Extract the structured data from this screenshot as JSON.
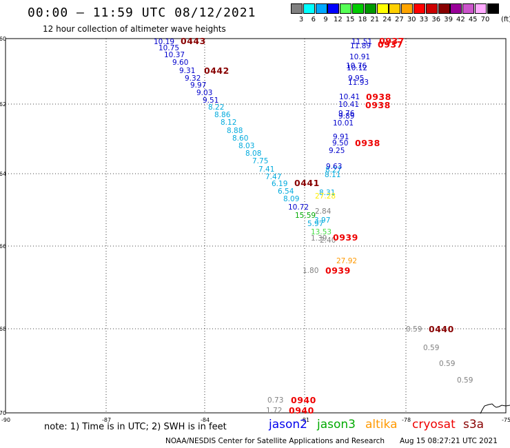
{
  "header": {
    "title": "00:00 – 11:59 UTC 08/12/2021",
    "subtitle": "12 hour collection of altimeter wave heights"
  },
  "legend": {
    "unit": "(ft)",
    "items": [
      {
        "label": "3",
        "color": "#808080"
      },
      {
        "label": "6",
        "color": "#00ffff"
      },
      {
        "label": "9",
        "color": "#00a8ff"
      },
      {
        "label": "12",
        "color": "#0000ff"
      },
      {
        "label": "15",
        "color": "#55ff55"
      },
      {
        "label": "18",
        "color": "#00cc00"
      },
      {
        "label": "21",
        "color": "#009900"
      },
      {
        "label": "24",
        "color": "#ffff00"
      },
      {
        "label": "27",
        "color": "#ffd000"
      },
      {
        "label": "30",
        "color": "#ffa500"
      },
      {
        "label": "33",
        "color": "#ff0000"
      },
      {
        "label": "36",
        "color": "#cc0000"
      },
      {
        "label": "39",
        "color": "#880000"
      },
      {
        "label": "42",
        "color": "#990099"
      },
      {
        "label": "45",
        "color": "#cc55cc"
      },
      {
        "label": "70",
        "color": "#ffaaff"
      },
      {
        "label": "",
        "color": "#000000"
      }
    ]
  },
  "map": {
    "lat_ticks": [
      "-60",
      "-62",
      "-64",
      "-66",
      "-68",
      "-70"
    ],
    "lon_ticks": [
      "-90",
      "-87",
      "-84",
      "-81",
      "-78",
      "-75"
    ],
    "observations": [
      {
        "value": "10.19",
        "color": "#0000cc"
      },
      {
        "value": "10.75",
        "color": "#0000cc"
      },
      {
        "value": "10.37",
        "color": "#0000cc"
      },
      {
        "value": "9.60",
        "color": "#0000cc"
      },
      {
        "value": "9.31",
        "color": "#0000cc"
      },
      {
        "value": "9.32",
        "color": "#0000cc"
      },
      {
        "value": "9.97",
        "color": "#0000cc"
      },
      {
        "value": "9.03",
        "color": "#0000cc"
      },
      {
        "value": "9.51",
        "color": "#0000cc"
      },
      {
        "value": "8.22",
        "color": "#00aadd"
      },
      {
        "value": "8.86",
        "color": "#00aadd"
      },
      {
        "value": "8.12",
        "color": "#00aadd"
      },
      {
        "value": "8.88",
        "color": "#00aadd"
      },
      {
        "value": "8.60",
        "color": "#00aadd"
      },
      {
        "value": "8.03",
        "color": "#00aadd"
      },
      {
        "value": "8.08",
        "color": "#00aadd"
      },
      {
        "value": "7.75",
        "color": "#00aadd"
      },
      {
        "value": "7.41",
        "color": "#00aadd"
      },
      {
        "value": "7.47",
        "color": "#00aadd"
      },
      {
        "value": "6.19",
        "color": "#00aadd"
      },
      {
        "value": "6.54",
        "color": "#00aadd"
      },
      {
        "value": "8.09",
        "color": "#00aadd"
      },
      {
        "value": "10.72",
        "color": "#0000cc"
      },
      {
        "value": "15.59",
        "color": "#00aa00"
      },
      {
        "value": "5.97",
        "color": "#00aadd"
      },
      {
        "value": "3.97",
        "color": "#00aadd"
      },
      {
        "value": "13.53",
        "color": "#44dd44"
      },
      {
        "value": "1.39",
        "color": "#808080"
      },
      {
        "value": "2.40",
        "color": "#808080"
      },
      {
        "value": "2.84",
        "color": "#808080"
      },
      {
        "value": "8.31",
        "color": "#00aadd"
      },
      {
        "value": "27.28",
        "color": "#ffee00"
      },
      {
        "value": "8.11",
        "color": "#00aadd"
      },
      {
        "value": "8.27",
        "color": "#00aadd"
      },
      {
        "value": "9.63",
        "color": "#0000cc"
      },
      {
        "value": "9.25",
        "color": "#0000cc"
      },
      {
        "value": "9.50",
        "color": "#0000cc"
      },
      {
        "value": "9.91",
        "color": "#0000cc"
      },
      {
        "value": "10.01",
        "color": "#0000cc"
      },
      {
        "value": "9.89",
        "color": "#0000cc"
      },
      {
        "value": "9.76",
        "color": "#0000cc"
      },
      {
        "value": "10.41",
        "color": "#0000cc"
      },
      {
        "value": "10.41",
        "color": "#0000cc"
      },
      {
        "value": "11.93",
        "color": "#0000cc"
      },
      {
        "value": "9.95",
        "color": "#0000cc"
      },
      {
        "value": "10.12",
        "color": "#0000cc"
      },
      {
        "value": "10.76",
        "color": "#0000cc"
      },
      {
        "value": "10.91",
        "color": "#0000cc"
      },
      {
        "value": "11.89",
        "color": "#0000cc"
      },
      {
        "value": "11.51",
        "color": "#0000cc"
      },
      {
        "value": "27.92",
        "color": "#ff9900"
      },
      {
        "value": "1.80",
        "color": "#808080"
      },
      {
        "value": "0.59",
        "color": "#808080"
      },
      {
        "value": "0.59",
        "color": "#808080"
      },
      {
        "value": "0.59",
        "color": "#808080"
      },
      {
        "value": "0.59",
        "color": "#808080"
      },
      {
        "value": "0.73",
        "color": "#808080"
      },
      {
        "value": "1.72",
        "color": "#808080"
      }
    ],
    "time_tags": [
      {
        "value": "0443",
        "color": "#880000"
      },
      {
        "value": "0442",
        "color": "#880000"
      },
      {
        "value": "0441",
        "color": "#880000"
      },
      {
        "value": "0440",
        "color": "#880000"
      },
      {
        "value": "0937",
        "color": "#ee0000"
      },
      {
        "value": "0937",
        "color": "#ee0000"
      },
      {
        "value": "0938",
        "color": "#ee0000"
      },
      {
        "value": "0938",
        "color": "#ee0000"
      },
      {
        "value": "0938",
        "color": "#ee0000"
      },
      {
        "value": "0939",
        "color": "#ee0000"
      },
      {
        "value": "0939",
        "color": "#ee0000"
      },
      {
        "value": "0940",
        "color": "#ee0000"
      },
      {
        "value": "0940",
        "color": "#ee0000"
      }
    ]
  },
  "notes": {
    "text": "note: 1) Time is in UTC; 2) SWH is in feet"
  },
  "satellites": [
    {
      "name": "jason2",
      "color": "#0000ee"
    },
    {
      "name": "jason3",
      "color": "#00aa00"
    },
    {
      "name": "altika",
      "color": "#ff9900"
    },
    {
      "name": "cryosat",
      "color": "#ee0000"
    },
    {
      "name": "s3a",
      "color": "#880000"
    }
  ],
  "footer": {
    "credit": "NOAA/NESDIS Center for Satellite Applications and Research",
    "timestamp": "Aug 15 08:27:21 UTC 2021"
  }
}
